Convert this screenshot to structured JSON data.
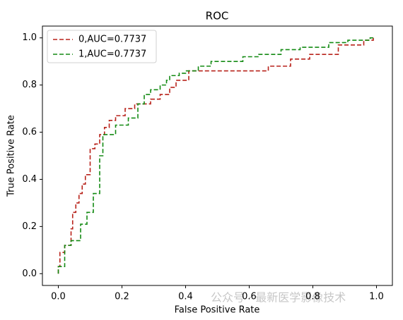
{
  "chart_data": {
    "type": "line",
    "title": "ROC",
    "x_label": "False Positive Rate",
    "y_label": "True Positive Rate",
    "xlim": [
      -0.05,
      1.05
    ],
    "ylim": [
      -0.05,
      1.05
    ],
    "xticks": [
      {
        "value": 0,
        "label": "0.0"
      },
      {
        "value": 0.2,
        "label": "0.2"
      },
      {
        "value": 0.4,
        "label": "0.4"
      },
      {
        "value": 0.6,
        "label": "0.6"
      },
      {
        "value": 0.8,
        "label": "0.8"
      },
      {
        "value": 1,
        "label": "1.0"
      }
    ],
    "yticks": [
      {
        "value": 0,
        "label": "0.0"
      },
      {
        "value": 0.2,
        "label": "0.2"
      },
      {
        "value": 0.4,
        "label": "0.4"
      },
      {
        "value": 0.6,
        "label": "0.6"
      },
      {
        "value": 0.8,
        "label": "0.8"
      },
      {
        "value": 1,
        "label": "1.0"
      }
    ],
    "legend": "upper left",
    "line_style": "dashed",
    "watermark": "公众号 · 最新医学影像技术",
    "series": [
      {
        "name": "0,AUC=0.7737",
        "color": "#b8221a",
        "x": [
          0,
          0,
          0.005,
          0.005,
          0.02,
          0.02,
          0.04,
          0.04,
          0.045,
          0.045,
          0.055,
          0.055,
          0.065,
          0.065,
          0.075,
          0.075,
          0.085,
          0.085,
          0.1,
          0.1,
          0.115,
          0.115,
          0.13,
          0.13,
          0.145,
          0.145,
          0.16,
          0.16,
          0.18,
          0.18,
          0.21,
          0.21,
          0.24,
          0.24,
          0.29,
          0.29,
          0.32,
          0.32,
          0.35,
          0.35,
          0.37,
          0.37,
          0.41,
          0.41,
          0.66,
          0.66,
          0.73,
          0.73,
          0.79,
          0.79,
          0.88,
          0.88,
          0.96,
          0.96,
          0.99,
          0.99
        ],
        "values": [
          0,
          0.03,
          0.03,
          0.09,
          0.09,
          0.12,
          0.12,
          0.19,
          0.19,
          0.26,
          0.26,
          0.3,
          0.3,
          0.34,
          0.34,
          0.38,
          0.38,
          0.42,
          0.42,
          0.53,
          0.53,
          0.55,
          0.55,
          0.59,
          0.59,
          0.62,
          0.62,
          0.65,
          0.65,
          0.67,
          0.67,
          0.7,
          0.7,
          0.72,
          0.72,
          0.74,
          0.74,
          0.76,
          0.76,
          0.79,
          0.79,
          0.82,
          0.82,
          0.86,
          0.86,
          0.88,
          0.88,
          0.91,
          0.91,
          0.93,
          0.93,
          0.97,
          0.97,
          0.99,
          0.99,
          1
        ]
      },
      {
        "name": "1,AUC=0.7737",
        "color": "#138a13",
        "x": [
          0,
          0,
          0.02,
          0.02,
          0.04,
          0.04,
          0.07,
          0.07,
          0.09,
          0.09,
          0.11,
          0.11,
          0.13,
          0.13,
          0.14,
          0.14,
          0.18,
          0.18,
          0.22,
          0.22,
          0.25,
          0.25,
          0.27,
          0.27,
          0.29,
          0.29,
          0.32,
          0.32,
          0.34,
          0.34,
          0.35,
          0.35,
          0.38,
          0.38,
          0.4,
          0.4,
          0.44,
          0.44,
          0.48,
          0.48,
          0.58,
          0.58,
          0.63,
          0.63,
          0.7,
          0.7,
          0.76,
          0.76,
          0.85,
          0.85,
          0.91,
          0.91,
          0.98,
          0.98,
          0.99
        ],
        "values": [
          0,
          0.03,
          0.03,
          0.12,
          0.12,
          0.14,
          0.14,
          0.21,
          0.21,
          0.26,
          0.26,
          0.34,
          0.34,
          0.5,
          0.5,
          0.59,
          0.59,
          0.63,
          0.63,
          0.66,
          0.66,
          0.72,
          0.72,
          0.76,
          0.76,
          0.78,
          0.78,
          0.8,
          0.8,
          0.82,
          0.82,
          0.84,
          0.84,
          0.85,
          0.85,
          0.86,
          0.86,
          0.88,
          0.88,
          0.9,
          0.9,
          0.92,
          0.92,
          0.93,
          0.93,
          0.95,
          0.95,
          0.96,
          0.96,
          0.98,
          0.98,
          0.99,
          0.99,
          1,
          1
        ]
      }
    ]
  }
}
